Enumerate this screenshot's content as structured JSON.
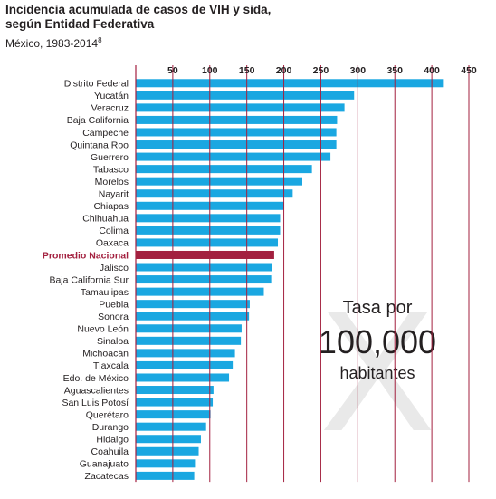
{
  "title": "Incidencia acumulada de casos de VIH y sida,",
  "title_line2": "según Entidad Federativa",
  "subtitle": "México, 1983-2014",
  "subtitle_note": "8",
  "overlay": {
    "line1": "Tasa por",
    "line2": "100,000",
    "line3": "habitantes",
    "watermark": "X"
  },
  "colors": {
    "bar": "#1aa7e1",
    "highlight": "#a3203f",
    "gridline": "#a3203f",
    "text": "#231f20"
  },
  "chart_data": {
    "type": "bar",
    "orientation": "horizontal",
    "categories": [
      "Distrito Federal",
      "Yucatán",
      "Veracruz",
      "Baja California",
      "Campeche",
      "Quintana Roo",
      "Guerrero",
      "Tabasco",
      "Morelos",
      "Nayarit",
      "Chiapas",
      "Chihuahua",
      "Colima",
      "Oaxaca",
      "Promedio Nacional",
      "Jalisco",
      "Baja California Sur",
      "Tamaulipas",
      "Puebla",
      "Sonora",
      "Nuevo León",
      "Sinaloa",
      "Michoacán",
      "Tlaxcala",
      "Edo. de México",
      "Aguascalientes",
      "San Luis Potosí",
      "Querétaro",
      "Durango",
      "Hidalgo",
      "Coahuila",
      "Guanajuato",
      "Zacatecas"
    ],
    "values": [
      415,
      295,
      282,
      272,
      271,
      271,
      263,
      238,
      225,
      212,
      200,
      195,
      195,
      192,
      187,
      184,
      183,
      173,
      154,
      153,
      143,
      142,
      134,
      131,
      126,
      105,
      104,
      101,
      95,
      88,
      85,
      80,
      79
    ],
    "highlight": "Promedio Nacional",
    "xticks": [
      50,
      100,
      150,
      200,
      250,
      300,
      350,
      400,
      450
    ],
    "xlim": [
      0,
      450
    ],
    "grid": true,
    "xaxis_position": "top"
  }
}
